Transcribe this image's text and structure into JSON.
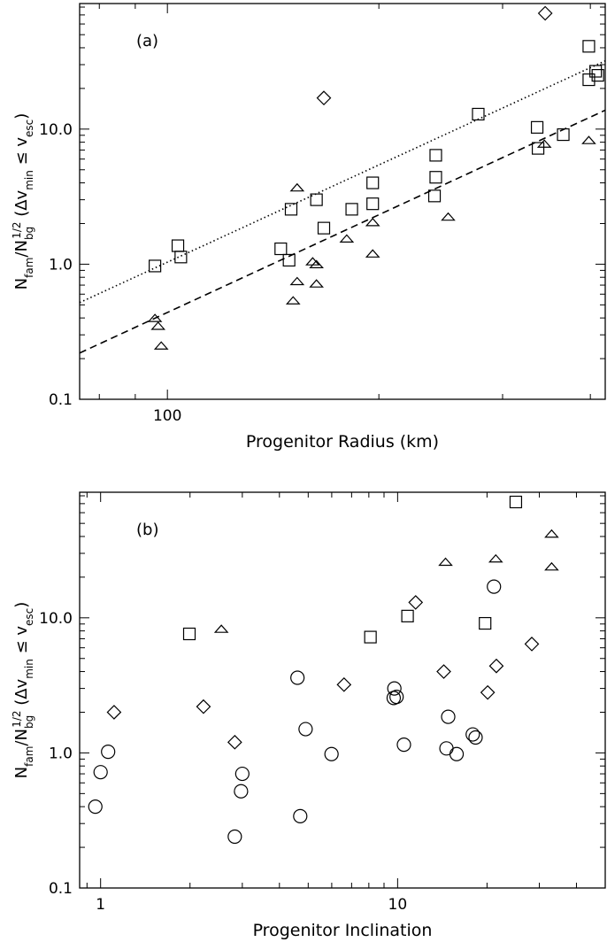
{
  "chart_data": [
    {
      "type": "scatter",
      "panel_label": "(a)",
      "xlabel": "Progenitor Radius (km)",
      "ylabel": "N_fam/N_bg^1/2 (Δv_min ≤ v_esc)",
      "xscale": "log",
      "yscale": "log",
      "xlim": [
        75,
        420
      ],
      "ylim": [
        0.1,
        85
      ],
      "xticks": [
        {
          "value": 100,
          "label": "100"
        }
      ],
      "yticks": [
        {
          "value": 0.1,
          "label": "0.1"
        },
        {
          "value": 1,
          "label": "1.0"
        },
        {
          "value": 10,
          "label": "10.0"
        }
      ],
      "series": [
        {
          "name": "squares",
          "marker": "square",
          "points": [
            [
              96,
              0.97
            ],
            [
              103.5,
              1.37
            ],
            [
              104.5,
              1.13
            ],
            [
              145,
              1.3
            ],
            [
              150,
              2.55
            ],
            [
              149,
              1.07
            ],
            [
              163,
              3.0
            ],
            [
              167,
              1.85
            ],
            [
              183,
              2.55
            ],
            [
              196,
              4.0
            ],
            [
              196,
              2.8
            ],
            [
              241,
              6.4
            ],
            [
              241,
              4.4
            ],
            [
              240,
              3.2
            ],
            [
              277,
              12.9
            ],
            [
              336,
              10.3
            ],
            [
              337,
              7.2
            ],
            [
              366,
              9.1
            ],
            [
              398,
              41
            ],
            [
              398,
              23.2
            ],
            [
              407,
              26.8
            ],
            [
              410,
              25
            ]
          ]
        },
        {
          "name": "triangles",
          "marker": "triangle",
          "points": [
            [
              96,
              0.4
            ],
            [
              97,
              0.35
            ],
            [
              98,
              0.25
            ],
            [
              153,
              3.7
            ],
            [
              153,
              0.75
            ],
            [
              151,
              0.54
            ],
            [
              161,
              1.05
            ],
            [
              163,
              1.0
            ],
            [
              163,
              0.72
            ],
            [
              180,
              1.55
            ],
            [
              196,
              2.05
            ],
            [
              196,
              1.2
            ],
            [
              251,
              2.25
            ],
            [
              344,
              7.8
            ],
            [
              398,
              8.3
            ]
          ]
        },
        {
          "name": "diamonds",
          "marker": "diamond",
          "points": [
            [
              167,
              17
            ],
            [
              345,
              72
            ]
          ]
        }
      ],
      "fit_lines": [
        {
          "name": "dotted fit",
          "style": "dotted",
          "points": [
            [
              75,
              0.52
            ],
            [
              420,
              32
            ]
          ]
        },
        {
          "name": "dashed fit",
          "style": "dashed",
          "points": [
            [
              75,
              0.22
            ],
            [
              420,
              13.8
            ]
          ]
        }
      ]
    },
    {
      "type": "scatter",
      "panel_label": "(b)",
      "xlabel": "Progenitor Inclination",
      "ylabel": "N_fam/N_bg^1/2 (Δv_min ≤ v_esc)",
      "xscale": "log",
      "yscale": "log",
      "xlim": [
        0.85,
        50
      ],
      "ylim": [
        0.1,
        85
      ],
      "xticks": [
        {
          "value": 1,
          "label": "1"
        },
        {
          "value": 10,
          "label": "10"
        }
      ],
      "yticks": [
        {
          "value": 0.1,
          "label": "0.1"
        },
        {
          "value": 1,
          "label": "1.0"
        },
        {
          "value": 10,
          "label": "10.0"
        }
      ],
      "series": [
        {
          "name": "squares",
          "marker": "square",
          "points": [
            [
              1.99,
              7.6
            ],
            [
              8.1,
              7.2
            ],
            [
              10.8,
              10.3
            ],
            [
              19.7,
              9.1
            ],
            [
              25,
              72
            ]
          ]
        },
        {
          "name": "triangles",
          "marker": "triangle",
          "points": [
            [
              2.55,
              8.3
            ],
            [
              14.5,
              26
            ],
            [
              21.4,
              27.5
            ],
            [
              33,
              42
            ],
            [
              33,
              24
            ]
          ]
        },
        {
          "name": "diamonds",
          "marker": "diamond",
          "points": [
            [
              1.11,
              2.0
            ],
            [
              2.22,
              2.2
            ],
            [
              2.83,
              1.2
            ],
            [
              6.6,
              3.2
            ],
            [
              11.5,
              13
            ],
            [
              14.3,
              4.0
            ],
            [
              20.1,
              2.8
            ],
            [
              21.5,
              4.4
            ],
            [
              28.3,
              6.4
            ]
          ]
        },
        {
          "name": "circles",
          "marker": "circle",
          "points": [
            [
              0.96,
              0.4
            ],
            [
              1.0,
              0.72
            ],
            [
              1.06,
              1.02
            ],
            [
              2.83,
              0.24
            ],
            [
              3.0,
              0.7
            ],
            [
              2.97,
              0.52
            ],
            [
              4.6,
              3.6
            ],
            [
              4.7,
              0.34
            ],
            [
              4.9,
              1.5
            ],
            [
              5.99,
              0.98
            ],
            [
              9.75,
              3.0
            ],
            [
              9.7,
              2.55
            ],
            [
              9.92,
              2.6
            ],
            [
              10.5,
              1.15
            ],
            [
              14.8,
              1.85
            ],
            [
              14.6,
              1.08
            ],
            [
              15.8,
              0.98
            ],
            [
              17.9,
              1.37
            ],
            [
              18.3,
              1.3
            ],
            [
              21.1,
              17
            ]
          ]
        }
      ],
      "fit_lines": []
    }
  ]
}
